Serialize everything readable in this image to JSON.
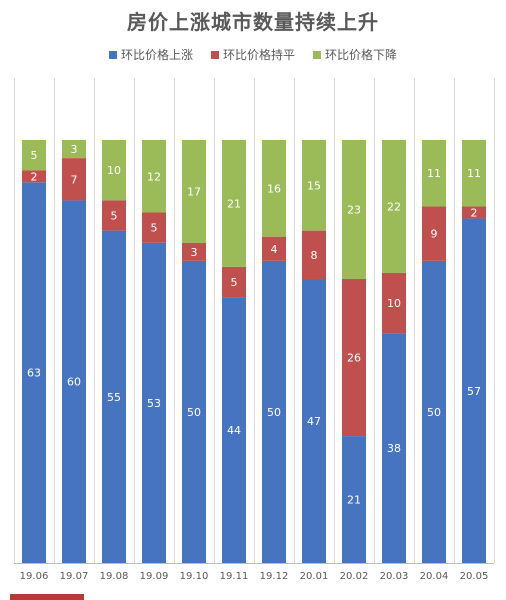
{
  "chart_data": {
    "type": "bar",
    "stacked": true,
    "title": "房价上涨城市数量持续上升",
    "categories": [
      "19.06",
      "19.07",
      "19.08",
      "19.09",
      "19.10",
      "19.11",
      "19.12",
      "20.01",
      "20.02",
      "20.03",
      "20.04",
      "20.05"
    ],
    "series": [
      {
        "name": "环比价格上涨",
        "color": "#4674c1",
        "values": [
          63,
          60,
          55,
          53,
          50,
          44,
          50,
          47,
          21,
          38,
          50,
          57
        ]
      },
      {
        "name": "环比价格持平",
        "color": "#c0504d",
        "values": [
          2,
          7,
          5,
          5,
          3,
          5,
          4,
          8,
          26,
          10,
          9,
          2
        ]
      },
      {
        "name": "环比价格下降",
        "color": "#9bbb59",
        "values": [
          5,
          3,
          10,
          12,
          17,
          21,
          16,
          15,
          23,
          22,
          11,
          11
        ]
      }
    ],
    "legend_position": "top",
    "grid": false
  }
}
